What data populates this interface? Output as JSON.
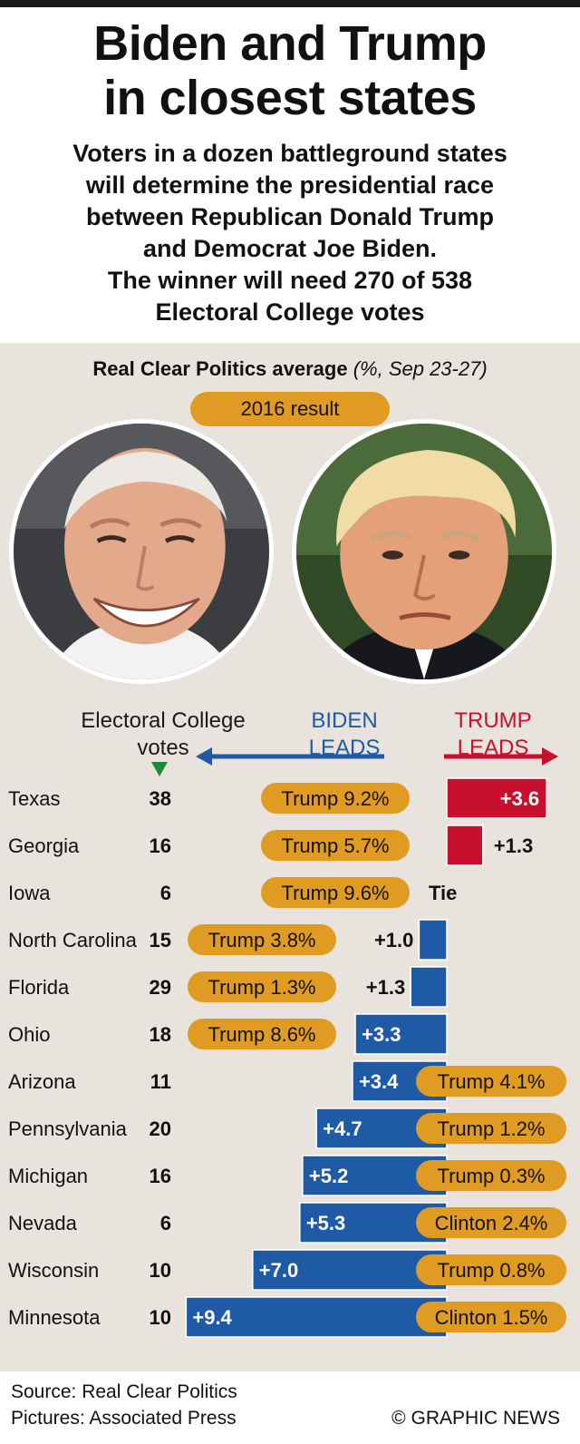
{
  "header": {
    "title_line1": "Biden and Trump",
    "title_line2": "in closest states",
    "subtitle_lines": [
      "Voters in a dozen battleground states",
      "will determine the presidential race",
      "between Republican Donald Trump",
      "and Democrat Joe Biden.",
      "The winner will need 270 of 538",
      "Electoral College votes"
    ]
  },
  "average": {
    "label": "Real Clear Politics average",
    "detail": "(%, Sep 23-27)"
  },
  "result_2016_label": "2016 result",
  "columns": {
    "ec_votes_line1": "Electoral College",
    "ec_votes_line2": "votes",
    "biden_line1": "BIDEN",
    "biden_line2": "LEADS",
    "trump_line1": "TRUMP",
    "trump_line2": "LEADS"
  },
  "colors": {
    "biden": "#1f5aa6",
    "trump": "#c8102e",
    "pill": "#e09b22",
    "panel": "#e8e3dc",
    "sort_arrow": "#1d8a3a"
  },
  "chart_data": {
    "type": "bar",
    "orientation": "horizontal",
    "categories": [
      "Texas",
      "Georgia",
      "Iowa",
      "North Carolina",
      "Florida",
      "Ohio",
      "Arizona",
      "Pennsylvania",
      "Michigan",
      "Nevada",
      "Wisconsin",
      "Minnesota"
    ],
    "electoral_votes": [
      38,
      16,
      6,
      15,
      29,
      18,
      11,
      20,
      16,
      6,
      10,
      10
    ],
    "series": [
      {
        "name": "BIDEN LEADS",
        "values": [
          0,
          0,
          0,
          1.0,
          1.3,
          3.3,
          3.4,
          4.7,
          5.2,
          5.3,
          7.0,
          9.4
        ]
      },
      {
        "name": "TRUMP LEADS",
        "values": [
          3.6,
          1.3,
          0,
          0,
          0,
          0,
          0,
          0,
          0,
          0,
          0,
          0
        ]
      }
    ],
    "lead_labels": [
      "+3.6",
      "+1.3",
      "Tie",
      "+1.0",
      "+1.3",
      "+3.3",
      "+3.4",
      "+4.7",
      "+5.2",
      "+5.3",
      "+7.0",
      "+9.4"
    ],
    "result_2016": [
      "Trump 9.2%",
      "Trump 5.7%",
      "Trump 9.6%",
      "Trump 3.8%",
      "Trump 1.3%",
      "Trump 8.6%",
      "Trump 4.1%",
      "Trump 1.2%",
      "Trump 0.3%",
      "Clinton 2.4%",
      "Trump 0.8%",
      "Clinton 1.5%"
    ]
  },
  "footer": {
    "source": "Source: Real Clear Politics",
    "pictures": "Pictures: Associated Press",
    "credit": "© GRAPHIC NEWS"
  }
}
